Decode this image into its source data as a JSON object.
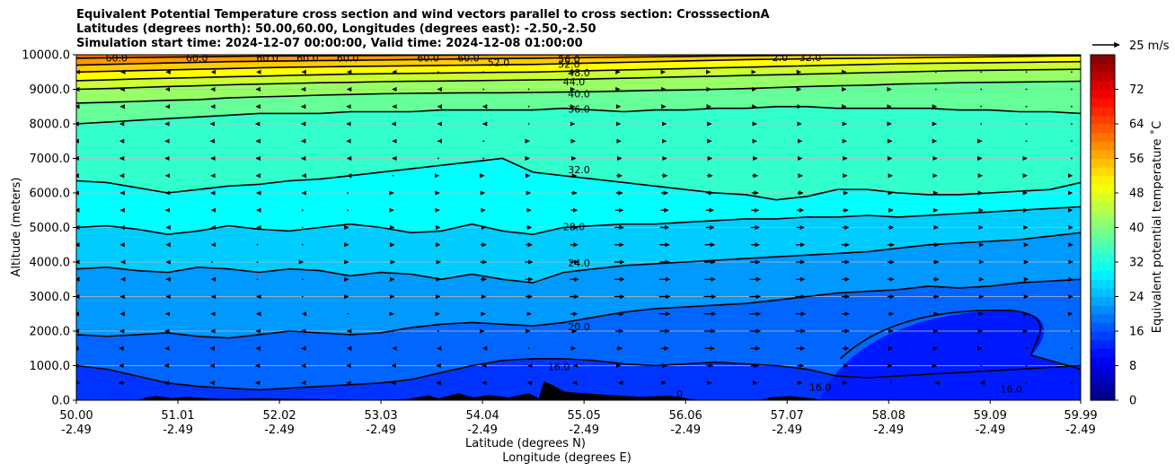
{
  "header": {
    "line1": "Equivalent Potential Temperature cross section and wind vectors parallel to cross section: CrosssectionA",
    "line2": "Latitudes (degrees north): 50.00,60.00, Longitudes (degrees east): -2.50,-2.50",
    "line3": "Simulation start time: 2024-12-07 00:00:00, Valid time: 2024-12-08 01:00:00"
  },
  "chart_data": {
    "type": "contourf",
    "title": "Equivalent Potential Temperature cross section and wind vectors parallel to cross section: CrosssectionA",
    "ylabel": "Altitude (meters)",
    "xlabel_lat": "Latitude (degrees N)",
    "xlabel_lon": "Longitude (degrees E)",
    "ylim": [
      0,
      10000
    ],
    "xlim": [
      50.0,
      59.99
    ],
    "y_ticks": [
      0,
      1000,
      2000,
      3000,
      4000,
      5000,
      6000,
      7000,
      8000,
      9000,
      10000
    ],
    "y_tick_labels": [
      "0.0",
      "1000.0",
      "2000.0",
      "3000.0",
      "4000.0",
      "5000.0",
      "6000.0",
      "7000.0",
      "8000.0",
      "9000.0",
      "10000.0"
    ],
    "x_ticks": [
      50.0,
      51.01,
      52.02,
      53.03,
      54.04,
      55.05,
      56.06,
      57.07,
      58.08,
      59.09,
      59.99
    ],
    "x_tick_labels_lat": [
      "50.00",
      "51.01",
      "52.02",
      "53.03",
      "54.04",
      "55.05",
      "56.06",
      "57.07",
      "58.08",
      "59.09",
      "59.99"
    ],
    "x_tick_labels_lon": [
      "-2.49",
      "-2.49",
      "-2.49",
      "-2.49",
      "-2.49",
      "-2.49",
      "-2.49",
      "-2.49",
      "-2.49",
      "-2.49",
      "-2.49"
    ],
    "colorbar": {
      "label": "Equivalent potential temperature ˚C",
      "range": [
        0,
        80
      ],
      "ticks": [
        0,
        8,
        16,
        24,
        32,
        40,
        48,
        56,
        64,
        72
      ],
      "tick_labels": [
        "0",
        "8",
        "16",
        "24",
        "32",
        "40",
        "48",
        "56",
        "64",
        "72"
      ],
      "colormap": "jet"
    },
    "contours": [
      {
        "level": 16,
        "label": "16.0",
        "z": [
          1000,
          900,
          700,
          500,
          400,
          350,
          300,
          350,
          400,
          450,
          500,
          600,
          800,
          1000,
          1150,
          1200,
          1200,
          1150,
          1050,
          1000,
          1050,
          1100,
          1050,
          1000,
          900,
          700,
          650,
          700,
          750,
          800,
          850,
          900,
          950,
          1000
        ]
      },
      {
        "level": 20,
        "label": "20.0",
        "z": [
          1900,
          1850,
          1900,
          1950,
          1850,
          1800,
          1900,
          2000,
          1950,
          1900,
          1950,
          2100,
          2200,
          2250,
          2200,
          2150,
          2250,
          2400,
          2550,
          2650,
          2700,
          2750,
          2800,
          2900,
          3000,
          3100,
          3150,
          3200,
          3300,
          3250,
          3300,
          3400,
          3450,
          3500
        ]
      },
      {
        "level": 24,
        "label": "24.0",
        "z": [
          3800,
          3850,
          3750,
          3700,
          3850,
          3800,
          3700,
          3800,
          3750,
          3600,
          3700,
          3650,
          3500,
          3650,
          3500,
          3400,
          3700,
          3800,
          3900,
          3950,
          4000,
          4050,
          4100,
          4150,
          4200,
          4250,
          4300,
          4400,
          4500,
          4550,
          4600,
          4650,
          4750,
          4850
        ]
      },
      {
        "level": 28,
        "label": "28.0",
        "z": [
          5000,
          5050,
          4950,
          4800,
          4900,
          5050,
          4950,
          4900,
          5000,
          5100,
          5000,
          4850,
          4900,
          5100,
          4900,
          4800,
          5000,
          5050,
          5100,
          5100,
          5150,
          5200,
          5250,
          5250,
          5300,
          5300,
          5350,
          5300,
          5350,
          5400,
          5450,
          5500,
          5550,
          5600
        ]
      },
      {
        "level": 32,
        "label": "32.0",
        "z": [
          6350,
          6300,
          6150,
          6000,
          6100,
          6200,
          6250,
          6350,
          6400,
          6500,
          6600,
          6700,
          6800,
          6900,
          7000,
          6600,
          6500,
          6400,
          6300,
          6200,
          6100,
          6000,
          5950,
          5800,
          5900,
          6100,
          6100,
          6000,
          5950,
          5950,
          6000,
          6050,
          6100,
          6300
        ]
      },
      {
        "level": 36,
        "label": "36.0",
        "z": [
          8000,
          8050,
          8100,
          8150,
          8200,
          8250,
          8300,
          8300,
          8300,
          8350,
          8350,
          8350,
          8400,
          8400,
          8400,
          8400,
          8450,
          8400,
          8350,
          8400,
          8400,
          8450,
          8450,
          8500,
          8500,
          8450,
          8450,
          8450,
          8450,
          8400,
          8400,
          8350,
          8350,
          8300
        ]
      },
      {
        "level": 40,
        "label": "40.0",
        "z": [
          8600,
          8620,
          8650,
          8680,
          8700,
          8750,
          8780,
          8800,
          8830,
          8850,
          8870,
          8880,
          8890,
          8900,
          8900,
          8910,
          8920,
          8930,
          8950,
          8970,
          8980,
          9000,
          9020,
          9050,
          9080,
          9100,
          9120,
          9150,
          9170,
          9190,
          9200,
          9210,
          9220,
          9230
        ]
      },
      {
        "level": 44,
        "label": "44.0",
        "z": [
          9000,
          9020,
          9050,
          9080,
          9100,
          9130,
          9150,
          9170,
          9190,
          9200,
          9220,
          9230,
          9240,
          9250,
          9260,
          9270,
          9280,
          9300,
          9320,
          9340,
          9360,
          9380,
          9400,
          9420,
          9440,
          9460,
          9480,
          9500,
          9520,
          9540,
          9550,
          9560,
          9570,
          9580
        ]
      },
      {
        "level": 48,
        "label": "48.0",
        "z": [
          9250,
          9270,
          9300,
          9320,
          9340,
          9360,
          9380,
          9400,
          9420,
          9440,
          9450,
          9460,
          9470,
          9480,
          9490,
          9500,
          9520,
          9540,
          9560,
          9580,
          9600,
          9620,
          9640,
          9660,
          9680,
          9700,
          9720,
          9740,
          9750,
          9760,
          9770,
          9780,
          9790,
          9800
        ]
      },
      {
        "level": 52,
        "label": "52.0",
        "z": [
          9500,
          9520,
          9540,
          9560,
          9580,
          9600,
          9620,
          9640,
          9650,
          9660,
          9670,
          9680,
          9690,
          9700,
          9710,
          9720,
          9740,
          9760,
          9780,
          9800,
          9820,
          9840,
          9860,
          9870,
          9880,
          9890,
          9900,
          9910,
          9920,
          9930,
          9940,
          9950,
          9960,
          9970
        ]
      },
      {
        "level": 56,
        "label": "56.0",
        "z": [
          9700,
          9720,
          9740,
          9760,
          9780,
          9800,
          9810,
          9820,
          9830,
          9840,
          9850,
          9860,
          9870,
          9880,
          9890,
          9900,
          9910,
          9920,
          9930,
          9940,
          9950,
          9960,
          9970,
          9980,
          9990,
          9995,
          10000,
          10000,
          10000,
          10000,
          10000,
          10000,
          10000,
          10000
        ]
      },
      {
        "level": 60,
        "label": "60.0",
        "z": [
          9900,
          9910,
          9920,
          9930,
          9940,
          9950,
          9960,
          9965,
          9970,
          9975,
          9980,
          9985,
          9990,
          9995,
          10000,
          10000,
          10000,
          10000,
          10000,
          10000,
          10000,
          10000,
          10000,
          10000,
          10000,
          10000,
          10000,
          10000,
          10000,
          10000,
          10000,
          10000,
          10000,
          10000
        ]
      }
    ],
    "contour_labels": [
      {
        "text": "60.0",
        "x": 50.4,
        "y": 9880
      },
      {
        "text": "60.0",
        "x": 51.2,
        "y": 9880
      },
      {
        "text": "60.0",
        "x": 51.9,
        "y": 9880
      },
      {
        "text": "60.0",
        "x": 52.3,
        "y": 9880
      },
      {
        "text": "60.0",
        "x": 52.7,
        "y": 9880
      },
      {
        "text": "60.0",
        "x": 53.5,
        "y": 9880
      },
      {
        "text": "60.0",
        "x": 53.9,
        "y": 9880
      },
      {
        "text": "52.0",
        "x": 54.2,
        "y": 9750
      },
      {
        "text": "56.0",
        "x": 54.9,
        "y": 9850
      },
      {
        "text": "52.0",
        "x": 54.9,
        "y": 9700
      },
      {
        "text": "48.0",
        "x": 55.0,
        "y": 9450
      },
      {
        "text": "44.0",
        "x": 54.95,
        "y": 9200
      },
      {
        "text": "40.0",
        "x": 55.0,
        "y": 8850
      },
      {
        "text": "36.0",
        "x": 55.0,
        "y": 8400
      },
      {
        "text": "32.0",
        "x": 55.0,
        "y": 6650
      },
      {
        "text": "28.0",
        "x": 54.95,
        "y": 5000
      },
      {
        "text": "24.0",
        "x": 55.0,
        "y": 3950
      },
      {
        "text": "20.0",
        "x": 55.0,
        "y": 2100
      },
      {
        "text": "16.0",
        "x": 54.8,
        "y": 950
      },
      {
        "text": "16.0",
        "x": 59.3,
        "y": 300
      },
      {
        "text": "16.0",
        "x": 57.4,
        "y": 350
      },
      {
        "text": "2.0",
        "x": 57.0,
        "y": 9900
      },
      {
        "text": "32.0",
        "x": 57.3,
        "y": 9900
      },
      {
        "text": "0",
        "x": 56.0,
        "y": 150
      }
    ],
    "wind_key": {
      "label": "25 m/s",
      "speed": 25
    },
    "wind_rows_m": [
      500,
      1000,
      1500,
      2000,
      2500,
      3000,
      3500,
      4000,
      4500,
      5000,
      5500,
      6000,
      6500,
      7000,
      7500,
      8000,
      8500,
      9000,
      9500
    ],
    "wind_cols_deg": [
      50.0,
      50.45,
      50.9,
      51.35,
      51.8,
      52.25,
      52.7,
      53.15,
      53.6,
      54.05,
      54.5,
      54.95,
      55.4,
      55.85,
      56.3,
      56.75,
      57.2,
      57.65,
      58.1,
      58.55,
      59.0,
      59.45,
      59.9
    ],
    "wind_u_ms": [
      [
        -6,
        -5,
        -4,
        -3,
        -3,
        -2,
        -2,
        -3,
        -3,
        -2,
        -2,
        -2,
        -1,
        2,
        3,
        4,
        3,
        2,
        0,
        -1,
        -1,
        0,
        0
      ],
      [
        -5,
        -4,
        -4,
        -3,
        -3,
        -2,
        -2,
        -2,
        -3,
        -2,
        -1,
        -1,
        2,
        4,
        6,
        7,
        6,
        4,
        2,
        1,
        0,
        0,
        0
      ],
      [
        -4,
        -4,
        -3,
        -3,
        -2,
        -2,
        -1,
        -1,
        -2,
        -1,
        0,
        2,
        5,
        7,
        9,
        9,
        8,
        6,
        3,
        2,
        1,
        0,
        0
      ],
      [
        -3,
        -3,
        -3,
        -2,
        -2,
        -2,
        -1,
        0,
        0,
        1,
        2,
        4,
        7,
        9,
        10,
        10,
        9,
        7,
        4,
        3,
        2,
        1,
        0
      ],
      [
        -3,
        -2,
        -2,
        -2,
        -1,
        -1,
        0,
        1,
        2,
        3,
        4,
        6,
        8,
        10,
        11,
        10,
        9,
        7,
        5,
        4,
        3,
        2,
        1
      ],
      [
        -2,
        -2,
        -1,
        -1,
        -1,
        0,
        1,
        2,
        3,
        4,
        6,
        8,
        9,
        10,
        11,
        10,
        9,
        7,
        6,
        5,
        4,
        3,
        2
      ],
      [
        -2,
        -1,
        -1,
        -1,
        0,
        0,
        1,
        2,
        4,
        5,
        7,
        8,
        9,
        10,
        10,
        10,
        8,
        7,
        6,
        5,
        4,
        3,
        2
      ],
      [
        -2,
        -1,
        -1,
        0,
        0,
        1,
        1,
        3,
        4,
        6,
        7,
        8,
        9,
        9,
        10,
        9,
        8,
        7,
        6,
        5,
        4,
        3,
        2
      ],
      [
        -2,
        -2,
        -1,
        -1,
        0,
        0,
        1,
        2,
        3,
        5,
        6,
        7,
        8,
        9,
        9,
        8,
        8,
        7,
        6,
        5,
        4,
        3,
        2
      ],
      [
        -2,
        -2,
        -1,
        -1,
        -1,
        0,
        1,
        2,
        3,
        4,
        5,
        7,
        8,
        8,
        8,
        8,
        7,
        6,
        5,
        4,
        3,
        2,
        2
      ],
      [
        -2,
        -2,
        -2,
        -1,
        -1,
        0,
        0,
        1,
        2,
        3,
        4,
        6,
        7,
        7,
        7,
        7,
        6,
        5,
        4,
        3,
        3,
        2,
        1
      ],
      [
        -3,
        -2,
        -2,
        -2,
        -1,
        -1,
        0,
        1,
        2,
        2,
        3,
        5,
        6,
        6,
        6,
        6,
        5,
        4,
        3,
        3,
        2,
        1,
        1
      ],
      [
        -3,
        -3,
        -2,
        -2,
        -2,
        -1,
        -1,
        0,
        1,
        1,
        2,
        4,
        5,
        5,
        5,
        5,
        4,
        3,
        3,
        2,
        2,
        1,
        1
      ],
      [
        -3,
        -3,
        -3,
        -2,
        -2,
        -2,
        -1,
        -1,
        0,
        0,
        1,
        3,
        4,
        4,
        4,
        4,
        3,
        3,
        2,
        2,
        1,
        1,
        0
      ],
      [
        -3,
        -3,
        -3,
        -3,
        -2,
        -2,
        -2,
        -1,
        -1,
        0,
        1,
        2,
        3,
        3,
        3,
        3,
        3,
        2,
        2,
        1,
        1,
        0,
        0
      ],
      [
        -3,
        -3,
        -3,
        -3,
        -3,
        -2,
        -2,
        -2,
        -1,
        -1,
        0,
        1,
        2,
        3,
        3,
        3,
        2,
        2,
        1,
        1,
        0,
        0,
        0
      ],
      [
        -2,
        -2,
        -2,
        -2,
        -2,
        -2,
        -2,
        -1,
        -1,
        -1,
        0,
        1,
        2,
        2,
        2,
        2,
        2,
        1,
        1,
        1,
        0,
        0,
        0
      ],
      [
        -2,
        -2,
        -2,
        -2,
        -2,
        -2,
        -1,
        -1,
        -1,
        0,
        0,
        1,
        1,
        2,
        2,
        2,
        1,
        1,
        1,
        0,
        0,
        0,
        0
      ],
      [
        -1,
        -1,
        -1,
        -1,
        -1,
        -1,
        -1,
        -1,
        0,
        0,
        0,
        1,
        1,
        1,
        1,
        1,
        1,
        1,
        0,
        0,
        0,
        0,
        0
      ]
    ],
    "terrain_m": [
      {
        "x": 50.0,
        "h": 0
      },
      {
        "x": 50.6,
        "h": 0
      },
      {
        "x": 50.7,
        "h": 80
      },
      {
        "x": 50.8,
        "h": 120
      },
      {
        "x": 50.95,
        "h": 60
      },
      {
        "x": 51.1,
        "h": 100
      },
      {
        "x": 51.3,
        "h": 60
      },
      {
        "x": 51.5,
        "h": 40
      },
      {
        "x": 51.8,
        "h": 60
      },
      {
        "x": 52.1,
        "h": 40
      },
      {
        "x": 52.4,
        "h": 30
      },
      {
        "x": 52.6,
        "h": 20
      },
      {
        "x": 53.0,
        "h": 10
      },
      {
        "x": 53.3,
        "h": 40
      },
      {
        "x": 53.5,
        "h": 140
      },
      {
        "x": 53.6,
        "h": 60
      },
      {
        "x": 53.8,
        "h": 200
      },
      {
        "x": 53.95,
        "h": 80
      },
      {
        "x": 54.1,
        "h": 150
      },
      {
        "x": 54.3,
        "h": 80
      },
      {
        "x": 54.5,
        "h": 200
      },
      {
        "x": 54.6,
        "h": 60
      },
      {
        "x": 54.65,
        "h": 550
      },
      {
        "x": 54.75,
        "h": 420
      },
      {
        "x": 54.85,
        "h": 250
      },
      {
        "x": 55.05,
        "h": 200
      },
      {
        "x": 55.3,
        "h": 150
      },
      {
        "x": 55.6,
        "h": 100
      },
      {
        "x": 55.9,
        "h": 130
      },
      {
        "x": 56.1,
        "h": 40
      },
      {
        "x": 56.2,
        "h": 0
      },
      {
        "x": 56.8,
        "h": 0
      },
      {
        "x": 56.9,
        "h": 80
      },
      {
        "x": 57.1,
        "h": 120
      },
      {
        "x": 57.3,
        "h": 60
      },
      {
        "x": 57.45,
        "h": 0
      },
      {
        "x": 59.99,
        "h": 0
      }
    ]
  }
}
